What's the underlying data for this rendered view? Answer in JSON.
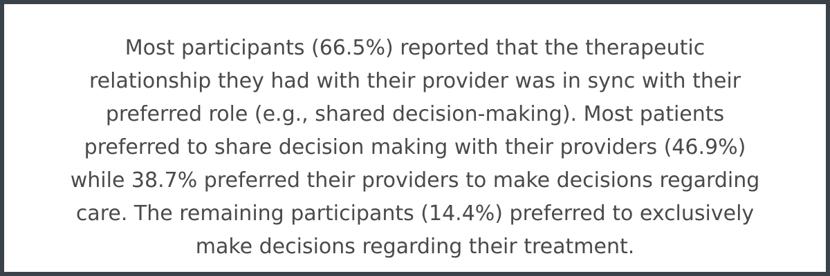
{
  "paragraph": {
    "lines": [
      "Most participants (66.5%) reported that the therapeutic",
      "relationship they had with their provider was in sync with their",
      "preferred role (e.g., shared decision-making). Most patients",
      "preferred to share decision making with their providers (46.9%)",
      "while 38.7% preferred their providers to make decisions regarding",
      "care. The remaining participants (14.4%) preferred to exclusively",
      "make decisions regarding their treatment."
    ]
  },
  "colors": {
    "border": "#3a4249",
    "background": "#ffffff",
    "text": "#4a4a4a"
  }
}
